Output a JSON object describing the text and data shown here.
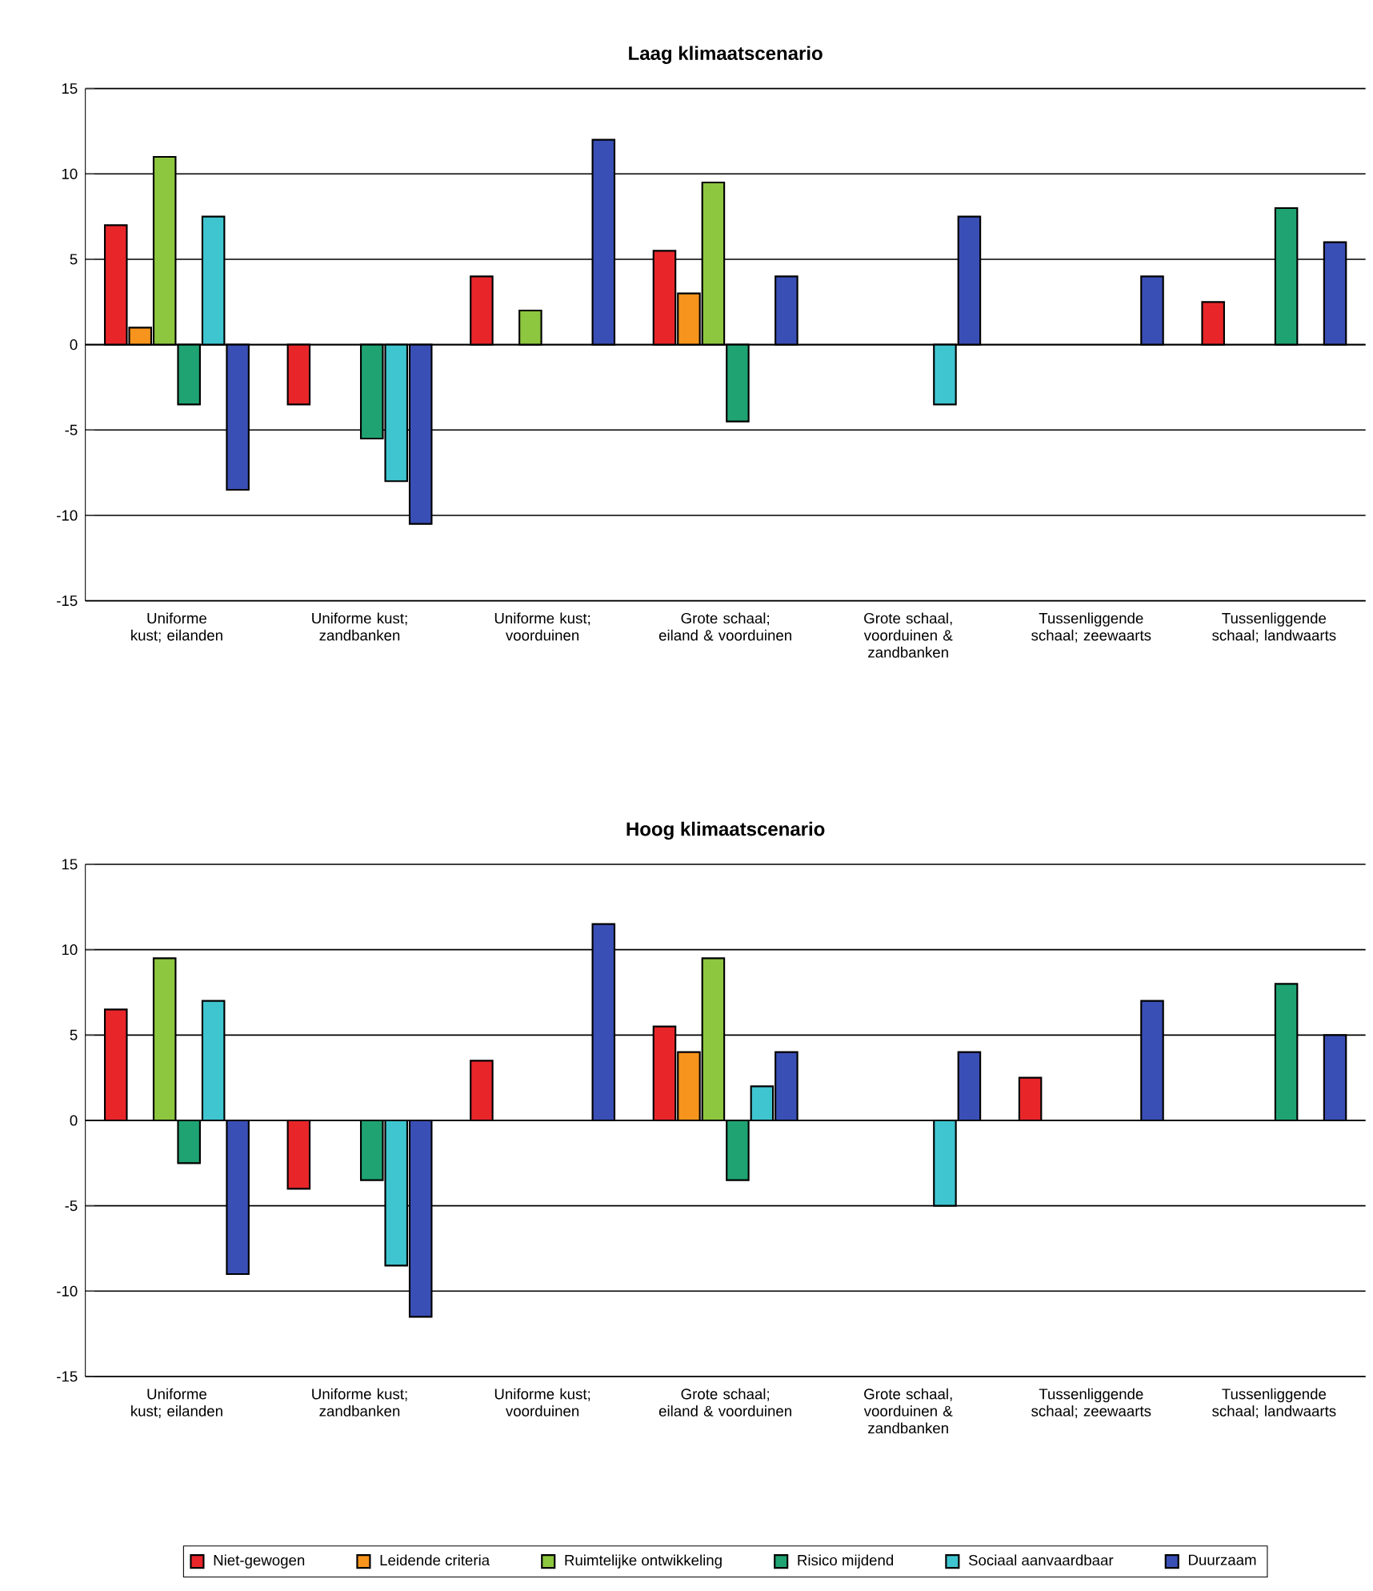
{
  "chart_data": [
    {
      "type": "bar",
      "title": "Laag klimaatscenario",
      "categories": [
        "Uniforme kust; eilanden",
        "Uniforme kust; zandbanken",
        "Uniforme kust; voorduinen",
        "Grote schaal; eiland & voorduinen",
        "Grote schaal, voorduinen & zandbanken",
        "Tussenliggende schaal; zeewaarts",
        "Tussenliggende schaal; landwaarts"
      ],
      "series": [
        {
          "color": "#e8262a",
          "values": [
            7,
            -3.5,
            4,
            5.5,
            null,
            null,
            2.5
          ]
        },
        {
          "color": "#f7941d",
          "values": [
            1,
            null,
            null,
            3,
            null,
            null,
            null
          ]
        },
        {
          "color": "#8dc63f",
          "values": [
            11,
            null,
            2,
            9.5,
            null,
            null,
            null
          ]
        },
        {
          "color": "#1fa372",
          "values": [
            -3.5,
            -5.5,
            null,
            -4.5,
            null,
            null,
            8
          ]
        },
        {
          "color": "#3fc5d0",
          "values": [
            7.5,
            -8,
            null,
            null,
            -3.5,
            null,
            null
          ]
        },
        {
          "color": "#3a4fb5",
          "values": [
            -8.5,
            -10.5,
            12,
            4,
            7.5,
            4,
            6
          ]
        }
      ],
      "ylim": [
        -15,
        15
      ],
      "yticks": [
        -15,
        -10,
        -5,
        0,
        5,
        10,
        15
      ],
      "grid": "y",
      "legend": false
    },
    {
      "type": "bar",
      "title": "Hoog klimaatscenario",
      "categories": [
        "Uniforme kust; eilanden",
        "Uniforme kust; zandbanken",
        "Uniforme kust; voorduinen",
        "Grote schaal; eiland & voorduinen",
        "Grote schaal, voorduinen & zandbanken",
        "Tussenliggende schaal; zeewaarts",
        "Tussenliggende schaal; landwaarts"
      ],
      "series": [
        {
          "name": "Niet-gewogen",
          "color": "#e8262a",
          "values": [
            6.5,
            -4,
            3.5,
            5.5,
            null,
            2.5,
            null
          ]
        },
        {
          "name": "Leidende criteria",
          "color": "#f7941d",
          "values": [
            null,
            null,
            null,
            4,
            null,
            null,
            null
          ]
        },
        {
          "name": "Ruimtelijke ontwikkeling",
          "color": "#8dc63f",
          "values": [
            9.5,
            null,
            null,
            9.5,
            null,
            null,
            null
          ]
        },
        {
          "name": "Risico mijdend",
          "color": "#1fa372",
          "values": [
            -2.5,
            -3.5,
            null,
            -3.5,
            null,
            null,
            8
          ]
        },
        {
          "name": "Sociaal aanvaardbaar",
          "color": "#3fc5d0",
          "values": [
            7,
            -8.5,
            null,
            2,
            -5,
            null,
            null
          ]
        },
        {
          "name": "Duurzaam",
          "color": "#3a4fb5",
          "values": [
            -9,
            -11.5,
            11.5,
            4,
            4,
            7,
            5
          ]
        }
      ],
      "ylim": [
        -15,
        15
      ],
      "yticks": [
        -15,
        -10,
        -5,
        0,
        5,
        10,
        15
      ],
      "grid": "y",
      "legend": "bottom"
    }
  ]
}
